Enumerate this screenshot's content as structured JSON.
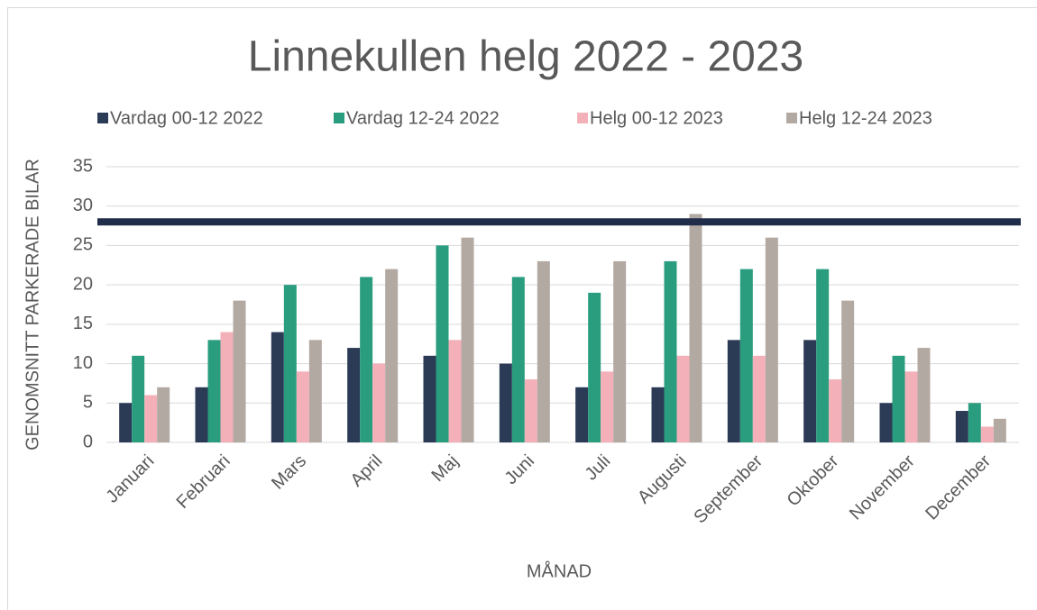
{
  "chart_data": {
    "type": "bar",
    "title": "Linnekullen helg 2022 - 2023",
    "x_label": "MÅNAD",
    "y_label": "GENOMSNITT PARKERADE BILAR",
    "categories": [
      "Januari",
      "Februari",
      "Mars",
      "April",
      "Maj",
      "Juni",
      "Juli",
      "Augusti",
      "September",
      "Oktober",
      "November",
      "December"
    ],
    "series": [
      {
        "name": "Vardag 00-12 2022",
        "color": "#2b3a55",
        "values": [
          5,
          7,
          14,
          12,
          11,
          10,
          7,
          7,
          13,
          13,
          5,
          4
        ]
      },
      {
        "name": "Vardag 12-24 2022",
        "color": "#2a9d7f",
        "values": [
          11,
          13,
          20,
          21,
          25,
          21,
          19,
          23,
          22,
          22,
          11,
          5
        ]
      },
      {
        "name": "Helg 00-12 2023",
        "color": "#f4b0b8",
        "values": [
          6,
          14,
          9,
          10,
          13,
          8,
          9,
          11,
          11,
          8,
          9,
          2
        ]
      },
      {
        "name": "Helg 12-24 2023",
        "color": "#b3a9a3",
        "values": [
          7,
          18,
          13,
          22,
          26,
          23,
          23,
          29,
          26,
          18,
          12,
          3
        ]
      }
    ],
    "reference_line": {
      "value": 28,
      "color": "#1f2d4a"
    },
    "ylim": [
      0,
      35
    ],
    "yticks": [
      0,
      5,
      10,
      15,
      20,
      25,
      30,
      35
    ],
    "grid": true,
    "legend": "top"
  }
}
